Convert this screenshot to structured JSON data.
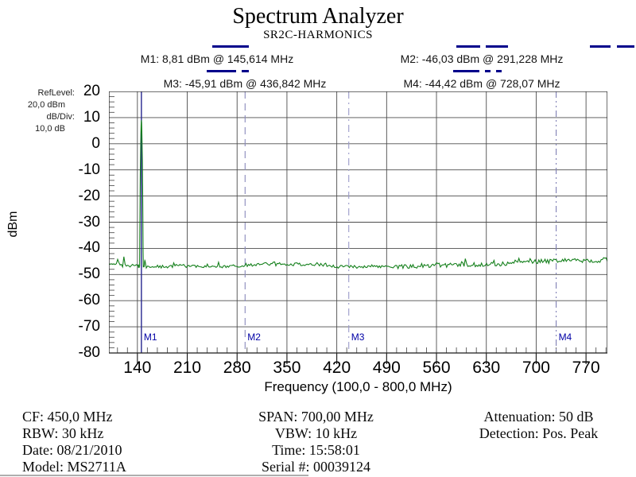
{
  "header": {
    "title": "Spectrum Analyzer",
    "subtitle": "SR2C-HARMONICS"
  },
  "ref_panel": {
    "ref_label": "RefLevel:",
    "ref_value": "20,0 dBm",
    "div_label": "dB/Div:",
    "div_value": "10,0 dB"
  },
  "chart_data": {
    "type": "line",
    "title": "Spectrum Analyzer",
    "subtitle": "SR2C-HARMONICS",
    "xlabel": "Frequency (100,0 - 800,0 MHz)",
    "ylabel": "dBm",
    "xlim": [
      100,
      800
    ],
    "ylim": [
      -80,
      20
    ],
    "x_ticks": [
      140,
      210,
      280,
      350,
      420,
      490,
      560,
      630,
      700,
      770
    ],
    "y_ticks": [
      20,
      10,
      0,
      -10,
      -20,
      -30,
      -40,
      -50,
      -60,
      -70,
      -80
    ],
    "db_per_div": 10,
    "mhz_per_minor_tick": 14,
    "grid": true,
    "legend_position": "top",
    "trace": {
      "name": "SR2C-HARMONICS",
      "color": "#15801c",
      "noise_floor_dbm": -46.3,
      "noise_floor_right_dbm": -44.3,
      "peak": {
        "freq_mhz": 145.614,
        "level_dbm": 8.81
      },
      "minor_peaks": [
        [
          112,
          -44.0
        ],
        [
          121,
          -43.2
        ],
        [
          150.5,
          -44.6
        ],
        [
          254,
          -45.3
        ],
        [
          333,
          -45.0
        ],
        [
          405,
          -44.9
        ],
        [
          470,
          -44.6
        ],
        [
          540,
          -44.3
        ],
        [
          601,
          -43.2
        ],
        [
          640,
          -42.9
        ],
        [
          676,
          -43.6
        ],
        [
          712,
          -43.5
        ],
        [
          757,
          -43.0
        ],
        [
          787,
          -43.2
        ]
      ]
    },
    "markers": [
      {
        "id": "M1",
        "label": "M1: 8,81 dBm @ 145,614 MHz",
        "freq_mhz": 145.614,
        "level_dbm": 8.81,
        "line_style": "solid",
        "color": "#26268e"
      },
      {
        "id": "M2",
        "label": "M2: -46,03 dBm @ 291,228 MHz",
        "freq_mhz": 291.228,
        "level_dbm": -46.03,
        "line_style": "dashed",
        "color": "#8989bb"
      },
      {
        "id": "M3",
        "label": "M3: -45,91 dBm @ 436,842 MHz",
        "freq_mhz": 436.842,
        "level_dbm": -45.91,
        "line_style": "dash-dot",
        "color": "#9a9ac9"
      },
      {
        "id": "M4",
        "label": "M4: -44,42 dBm @ 728,07 MHz",
        "freq_mhz": 728.07,
        "level_dbm": -44.42,
        "line_style": "dash-dot-dot",
        "color": "#7f7fb5"
      }
    ]
  },
  "footer": {
    "left": [
      "CF: 450,0 MHz",
      "RBW: 30 kHz",
      "Date: 08/21/2010",
      "Model: MS2711A"
    ],
    "center": [
      "SPAN: 700,00 MHz",
      "VBW: 10 kHz",
      "Time: 15:58:01",
      "Serial #: 00039124"
    ],
    "right": [
      "Attenuation: 50 dB",
      "Detection: Pos. Peak"
    ]
  },
  "colors": {
    "trace_green": "#15801c",
    "marker_navy": "#00008b"
  }
}
